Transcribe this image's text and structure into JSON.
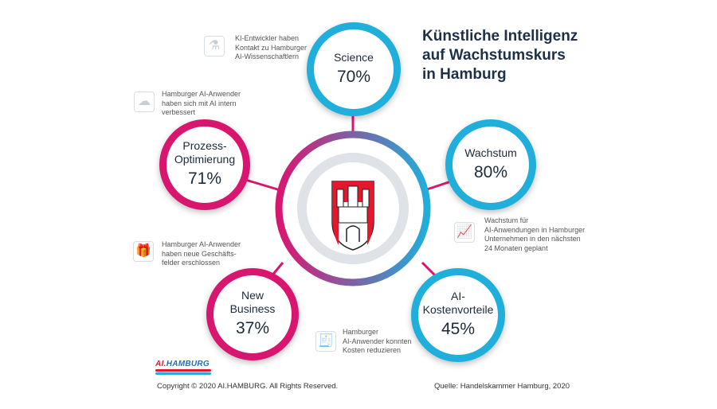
{
  "title_lines": [
    "Künstliche Intelligenz",
    "auf Wachstumskurs",
    "in Hamburg"
  ],
  "bubbles": [
    {
      "label": "Science",
      "value": "70%",
      "color": "#20aedb",
      "note": [
        "KI-Entwickler haben",
        "Kontakt zu Hamburger",
        "AI-Wissenschaftlern"
      ],
      "icon": "dna-microscope-icon"
    },
    {
      "label": "Prozess-\nOptimierung",
      "value": "71%",
      "color": "#d9166f",
      "note": [
        "Hamburger AI-Anwender",
        "haben sich mit AI intern",
        "verbessert"
      ],
      "icon": "brain-circuit-icon"
    },
    {
      "label": "Wachstum",
      "value": "80%",
      "color": "#20aedb",
      "note": [
        "Wachstum  für",
        "AI-Anwendungen in Hamburger",
        "Unternehmen in den nächsten",
        "24 Monaten geplant"
      ],
      "icon": "growth-chart-icon"
    },
    {
      "label": "New\nBusiness",
      "value": "37%",
      "color": "#d9166f",
      "note": [
        "Hamburger AI-Anwender",
        "haben neue Geschäfts-",
        "felder erschlossen"
      ],
      "icon": "gift-box-icon"
    },
    {
      "label": "AI-\nKostenvorteile",
      "value": "45%",
      "color": "#20aedb",
      "note": [
        "Hamburger",
        "AI-Anwender konnten",
        "Kosten reduzieren"
      ],
      "icon": "invoice-icon"
    }
  ],
  "logo": {
    "text": "AI.HAMBURG",
    "colors": [
      "#e3182d",
      "#1f6fb8"
    ]
  },
  "footer": {
    "copyright": "Copyright © 2020 AI.HAMBURG. All Rights Reserved.",
    "source": "Quelle: Handelskammer Hamburg, 2020"
  }
}
